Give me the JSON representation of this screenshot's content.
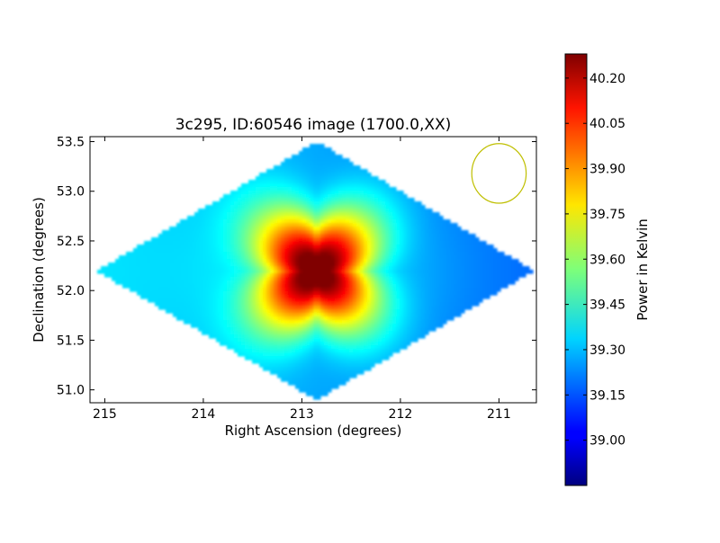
{
  "chart_data": {
    "type": "heatmap",
    "title": "3c295, ID:60546 image (1700.0,XX)",
    "xlabel": "Right Ascension (degrees)",
    "ylabel": "Declination (degrees)",
    "xlim": [
      215.15,
      210.62
    ],
    "ylim": [
      50.87,
      53.55
    ],
    "x_ticks": [
      215,
      214,
      213,
      212,
      211
    ],
    "x_tick_labels": [
      "215",
      "214",
      "213",
      "212",
      "211"
    ],
    "y_ticks": [
      51.0,
      51.5,
      52.0,
      52.5,
      53.0,
      53.5
    ],
    "y_tick_labels": [
      "51.0",
      "51.5",
      "52.0",
      "52.5",
      "53.0",
      "53.5"
    ],
    "colorbar": {
      "label": "Power in Kelvin",
      "colormap": "jet",
      "range": [
        38.85,
        40.28
      ],
      "ticks": [
        39.0,
        39.15,
        39.3,
        39.45,
        39.6,
        39.75,
        39.9,
        40.05,
        40.2
      ],
      "tick_labels": [
        "39.00",
        "39.15",
        "39.30",
        "39.45",
        "39.60",
        "39.75",
        "39.90",
        "40.05",
        "40.20"
      ]
    },
    "field": {
      "footprint_vertices": [
        [
          215.08,
          52.2
        ],
        [
          212.85,
          53.5
        ],
        [
          210.65,
          52.2
        ],
        [
          212.85,
          50.9
        ]
      ],
      "background": 39.28,
      "east_west_gradient": 0.16,
      "peak": {
        "ra": 212.85,
        "dec": 52.2,
        "value": 40.27
      },
      "beam_circle": {
        "ra": 211.0,
        "dec": 53.18,
        "radius_deg": 0.3,
        "color": "#bfbf00"
      }
    },
    "grid": false,
    "legend": "none"
  }
}
